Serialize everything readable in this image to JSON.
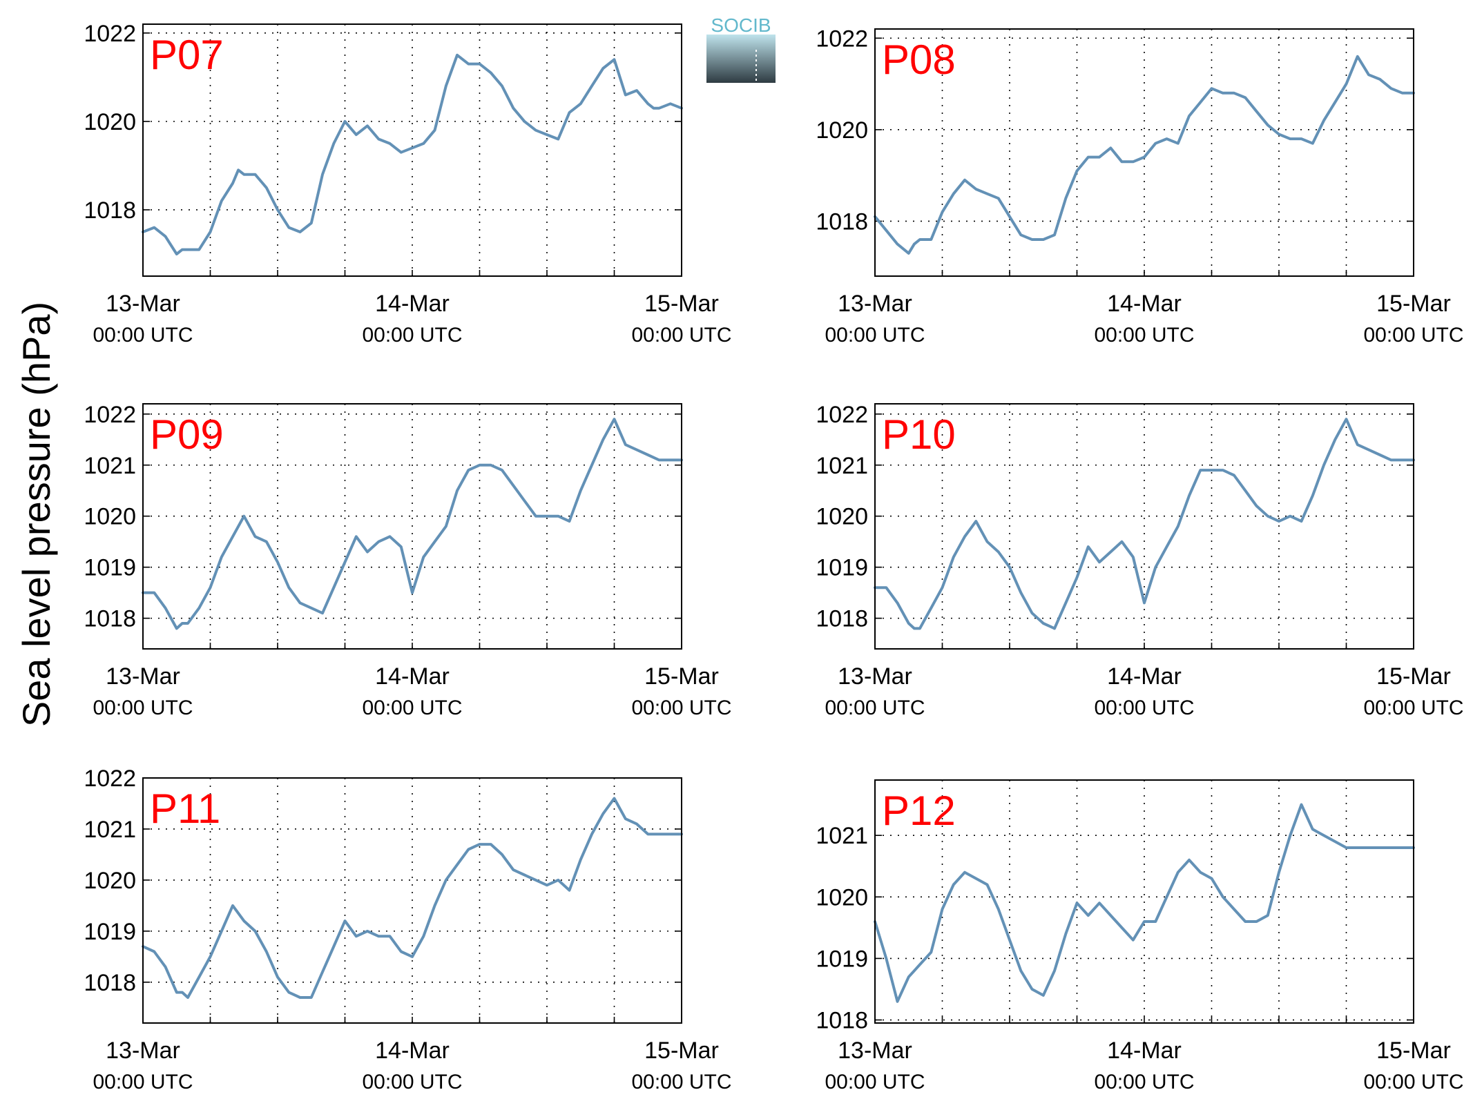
{
  "figure": {
    "ylabel": "Sea level pressure (hPa)",
    "logo_text": "SOCIB",
    "line_color": "#6391b6",
    "label_color": "#ff0000",
    "logo_colors": {
      "text": "#62b8cc",
      "top": "#bfe3ec",
      "bottom": "#2e3b42"
    },
    "x_tick_labels": [
      {
        "date": "13-Mar",
        "time": "00:00 UTC"
      },
      {
        "date": "14-Mar",
        "time": "00:00 UTC"
      },
      {
        "date": "15-Mar",
        "time": "00:00 UTC"
      }
    ]
  },
  "chart_data": [
    {
      "type": "line",
      "label": "P07",
      "xlabel": "",
      "ylabel": "",
      "x_unit": "hours since 13-Mar 00:00 UTC",
      "xlim": [
        0,
        48
      ],
      "ylim": [
        1016.5,
        1022.2
      ],
      "yticks": [
        1018,
        1020,
        1022
      ],
      "grid": true,
      "x": [
        0,
        1,
        2,
        3,
        3.5,
        4,
        5,
        6,
        7,
        8,
        8.5,
        9,
        10,
        11,
        12,
        13,
        14,
        15,
        16,
        17,
        18,
        19,
        20,
        21,
        22,
        23,
        24,
        25,
        26,
        27,
        28,
        29,
        30,
        31,
        32,
        33,
        34,
        35,
        36,
        37,
        38,
        39,
        40,
        41,
        42,
        43,
        44,
        45,
        45.5,
        46,
        47,
        48
      ],
      "y": [
        1017.5,
        1017.6,
        1017.4,
        1017.0,
        1017.1,
        1017.1,
        1017.1,
        1017.5,
        1018.2,
        1018.6,
        1018.9,
        1018.8,
        1018.8,
        1018.5,
        1018.0,
        1017.6,
        1017.5,
        1017.7,
        1018.8,
        1019.5,
        1020.0,
        1019.7,
        1019.9,
        1019.6,
        1019.5,
        1019.3,
        1019.4,
        1019.5,
        1019.8,
        1020.8,
        1021.5,
        1021.3,
        1021.3,
        1021.1,
        1020.8,
        1020.3,
        1020.0,
        1019.8,
        1019.7,
        1019.6,
        1020.2,
        1020.4,
        1020.8,
        1021.2,
        1021.4,
        1020.6,
        1020.7,
        1020.4,
        1020.3,
        1020.3,
        1020.4,
        1020.3
      ]
    },
    {
      "type": "line",
      "label": "P08",
      "xlabel": "",
      "ylabel": "",
      "x_unit": "hours since 13-Mar 00:00 UTC",
      "xlim": [
        0,
        48
      ],
      "ylim": [
        1016.8,
        1022.2
      ],
      "yticks": [
        1018,
        1020,
        1022
      ],
      "grid": true,
      "x": [
        0,
        1,
        2,
        3,
        3.5,
        4,
        5,
        6,
        7,
        8,
        9,
        10,
        11,
        12,
        13,
        14,
        15,
        16,
        17,
        18,
        19,
        20,
        21,
        22,
        23,
        24,
        25,
        26,
        27,
        28,
        29,
        30,
        31,
        32,
        33,
        34,
        35,
        36,
        37,
        38,
        39,
        40,
        41,
        42,
        43,
        44,
        45,
        46,
        47,
        48
      ],
      "y": [
        1018.1,
        1017.8,
        1017.5,
        1017.3,
        1017.5,
        1017.6,
        1017.6,
        1018.2,
        1018.6,
        1018.9,
        1018.7,
        1018.6,
        1018.5,
        1018.1,
        1017.7,
        1017.6,
        1017.6,
        1017.7,
        1018.5,
        1019.1,
        1019.4,
        1019.4,
        1019.6,
        1019.3,
        1019.3,
        1019.4,
        1019.7,
        1019.8,
        1019.7,
        1020.3,
        1020.6,
        1020.9,
        1020.8,
        1020.8,
        1020.7,
        1020.4,
        1020.1,
        1019.9,
        1019.8,
        1019.8,
        1019.7,
        1020.2,
        1020.6,
        1021.0,
        1021.6,
        1021.2,
        1021.1,
        1020.9,
        1020.8,
        1020.8
      ]
    },
    {
      "type": "line",
      "label": "P09",
      "xlabel": "",
      "ylabel": "",
      "x_unit": "hours since 13-Mar 00:00 UTC",
      "xlim": [
        0,
        48
      ],
      "ylim": [
        1017.4,
        1022.2
      ],
      "yticks": [
        1018,
        1019,
        1020,
        1021,
        1022
      ],
      "grid": true,
      "x": [
        0,
        1,
        2,
        3,
        3.5,
        4,
        5,
        6,
        7,
        8,
        9,
        10,
        11,
        12,
        13,
        14,
        15,
        16,
        17,
        18,
        19,
        20,
        21,
        22,
        23,
        24,
        25,
        26,
        27,
        28,
        29,
        30,
        31,
        32,
        33,
        34,
        35,
        36,
        37,
        38,
        39,
        40,
        41,
        42,
        43,
        44,
        45,
        46,
        47,
        48
      ],
      "y": [
        1018.5,
        1018.5,
        1018.2,
        1017.8,
        1017.9,
        1017.9,
        1018.2,
        1018.6,
        1019.2,
        1019.6,
        1020.0,
        1019.6,
        1019.5,
        1019.1,
        1018.6,
        1018.3,
        1018.2,
        1018.1,
        1018.6,
        1019.1,
        1019.6,
        1019.3,
        1019.5,
        1019.6,
        1019.4,
        1018.5,
        1019.2,
        1019.5,
        1019.8,
        1020.5,
        1020.9,
        1021.0,
        1021.0,
        1020.9,
        1020.6,
        1020.3,
        1020.0,
        1020.0,
        1020.0,
        1019.9,
        1020.5,
        1021.0,
        1021.5,
        1021.9,
        1021.4,
        1021.3,
        1021.2,
        1021.1,
        1021.1,
        1021.1
      ]
    },
    {
      "type": "line",
      "label": "P10",
      "xlabel": "",
      "ylabel": "",
      "x_unit": "hours since 13-Mar 00:00 UTC",
      "xlim": [
        0,
        48
      ],
      "ylim": [
        1017.4,
        1022.2
      ],
      "yticks": [
        1018,
        1019,
        1020,
        1021,
        1022
      ],
      "grid": true,
      "x": [
        0,
        1,
        2,
        3,
        3.5,
        4,
        5,
        6,
        7,
        8,
        9,
        10,
        11,
        12,
        13,
        14,
        15,
        16,
        17,
        18,
        19,
        20,
        21,
        22,
        23,
        24,
        25,
        26,
        27,
        28,
        29,
        30,
        31,
        32,
        33,
        34,
        35,
        36,
        37,
        38,
        39,
        40,
        41,
        42,
        43,
        44,
        45,
        46,
        47,
        48
      ],
      "y": [
        1018.6,
        1018.6,
        1018.3,
        1017.9,
        1017.8,
        1017.8,
        1018.2,
        1018.6,
        1019.2,
        1019.6,
        1019.9,
        1019.5,
        1019.3,
        1019.0,
        1018.5,
        1018.1,
        1017.9,
        1017.8,
        1018.3,
        1018.8,
        1019.4,
        1019.1,
        1019.3,
        1019.5,
        1019.2,
        1018.3,
        1019.0,
        1019.4,
        1019.8,
        1020.4,
        1020.9,
        1020.9,
        1020.9,
        1020.8,
        1020.5,
        1020.2,
        1020.0,
        1019.9,
        1020.0,
        1019.9,
        1020.4,
        1021.0,
        1021.5,
        1021.9,
        1021.4,
        1021.3,
        1021.2,
        1021.1,
        1021.1,
        1021.1
      ]
    },
    {
      "type": "line",
      "label": "P11",
      "xlabel": "",
      "ylabel": "",
      "x_unit": "hours since 13-Mar 00:00 UTC",
      "xlim": [
        0,
        48
      ],
      "ylim": [
        1017.2,
        1022.0
      ],
      "yticks": [
        1018,
        1019,
        1020,
        1021,
        1022
      ],
      "grid": true,
      "x": [
        0,
        1,
        2,
        3,
        3.5,
        4,
        5,
        6,
        7,
        8,
        9,
        10,
        11,
        12,
        13,
        14,
        15,
        16,
        17,
        18,
        19,
        20,
        21,
        22,
        23,
        24,
        25,
        26,
        27,
        28,
        29,
        30,
        31,
        32,
        33,
        34,
        35,
        36,
        37,
        38,
        39,
        40,
        41,
        42,
        43,
        44,
        45,
        46,
        47,
        48
      ],
      "y": [
        1018.7,
        1018.6,
        1018.3,
        1017.8,
        1017.8,
        1017.7,
        1018.1,
        1018.5,
        1019.0,
        1019.5,
        1019.2,
        1019.0,
        1018.6,
        1018.1,
        1017.8,
        1017.7,
        1017.7,
        1018.2,
        1018.7,
        1019.2,
        1018.9,
        1019.0,
        1018.9,
        1018.9,
        1018.6,
        1018.5,
        1018.9,
        1019.5,
        1020.0,
        1020.3,
        1020.6,
        1020.7,
        1020.7,
        1020.5,
        1020.2,
        1020.1,
        1020.0,
        1019.9,
        1020.0,
        1019.8,
        1020.4,
        1020.9,
        1021.3,
        1021.6,
        1021.2,
        1021.1,
        1020.9,
        1020.9,
        1020.9,
        1020.9
      ]
    },
    {
      "type": "line",
      "label": "P12",
      "xlabel": "",
      "ylabel": "",
      "x_unit": "hours since 13-Mar 00:00 UTC",
      "xlim": [
        0,
        48
      ],
      "ylim": [
        1017.95,
        1021.9
      ],
      "yticks": [
        1018,
        1019,
        1020,
        1021
      ],
      "grid": true,
      "x": [
        0,
        1,
        2,
        3,
        3.5,
        4,
        5,
        6,
        7,
        8,
        9,
        10,
        11,
        12,
        13,
        14,
        15,
        16,
        17,
        18,
        19,
        20,
        21,
        22,
        23,
        24,
        25,
        26,
        27,
        28,
        29,
        30,
        31,
        32,
        33,
        34,
        35,
        36,
        37,
        38,
        39,
        40,
        41,
        42,
        43,
        44,
        45,
        46,
        47,
        48
      ],
      "y": [
        1019.6,
        1019.0,
        1018.3,
        1018.7,
        1018.8,
        1018.9,
        1019.1,
        1019.8,
        1020.2,
        1020.4,
        1020.3,
        1020.2,
        1019.8,
        1019.3,
        1018.8,
        1018.5,
        1018.4,
        1018.8,
        1019.4,
        1019.9,
        1019.7,
        1019.9,
        1019.7,
        1019.5,
        1019.3,
        1019.6,
        1019.6,
        1020.0,
        1020.4,
        1020.6,
        1020.4,
        1020.3,
        1020.0,
        1019.8,
        1019.6,
        1019.6,
        1019.7,
        1020.4,
        1021.0,
        1021.5,
        1021.1,
        1021.0,
        1020.9,
        1020.8,
        1020.8,
        1020.8,
        1020.8,
        1020.8,
        1020.8,
        1020.8
      ]
    }
  ]
}
